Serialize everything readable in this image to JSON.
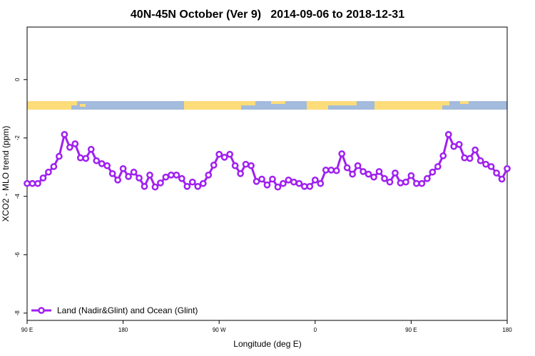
{
  "chart_data": {
    "type": "line",
    "title": "40N-45N October (Ver 9)   2014-09-06 to 2018-12-31",
    "xlabel": "Longitude (deg E)",
    "ylabel": "XCO2 - MLO trend (ppm)",
    "xlim": [
      90,
      540
    ],
    "ylim": [
      -8.25,
      1.8
    ],
    "xticks": [
      {
        "value": 90,
        "label": "90 E"
      },
      {
        "value": 180,
        "label": "180"
      },
      {
        "value": 270,
        "label": "90 W"
      },
      {
        "value": 360,
        "label": "0"
      },
      {
        "value": 450,
        "label": "90 E"
      },
      {
        "value": 540,
        "label": "180"
      }
    ],
    "yticks": [
      0,
      -2,
      -4,
      -6,
      -8
    ],
    "legend": "bottom-left",
    "x": [
      90,
      95,
      100,
      105,
      110,
      115,
      120,
      125,
      130,
      135,
      140,
      145,
      150,
      155,
      160,
      165,
      170,
      175,
      180,
      185,
      190,
      195,
      200,
      205,
      210,
      215,
      220,
      225,
      230,
      235,
      240,
      245,
      250,
      255,
      260,
      265,
      270,
      275,
      280,
      285,
      290,
      295,
      300,
      305,
      310,
      315,
      320,
      325,
      330,
      335,
      340,
      345,
      350,
      355,
      360,
      365,
      370,
      375,
      380,
      385,
      390,
      395,
      400,
      405,
      410,
      415,
      420,
      425,
      430,
      435,
      440,
      445,
      450,
      455,
      460,
      465,
      470,
      475,
      480,
      485,
      490,
      495,
      500,
      505,
      510,
      515,
      520,
      525,
      530,
      535,
      540
    ],
    "series": [
      {
        "name": "Land (Nadir&Glint) and Ocean (Glint)",
        "color": "#a020f0",
        "values": [
          -3.56,
          -3.56,
          -3.56,
          -3.37,
          -3.17,
          -2.98,
          -2.63,
          -1.88,
          -2.32,
          -2.2,
          -2.68,
          -2.7,
          -2.39,
          -2.78,
          -2.88,
          -2.95,
          -3.22,
          -3.44,
          -3.05,
          -3.32,
          -3.17,
          -3.37,
          -3.66,
          -3.27,
          -3.68,
          -3.54,
          -3.34,
          -3.27,
          -3.27,
          -3.39,
          -3.66,
          -3.51,
          -3.66,
          -3.56,
          -3.27,
          -2.93,
          -2.56,
          -2.66,
          -2.56,
          -2.95,
          -3.22,
          -2.9,
          -2.95,
          -3.49,
          -3.41,
          -3.61,
          -3.41,
          -3.68,
          -3.56,
          -3.44,
          -3.51,
          -3.56,
          -3.66,
          -3.66,
          -3.44,
          -3.56,
          -3.1,
          -3.1,
          -3.12,
          -2.54,
          -3.02,
          -3.24,
          -2.95,
          -3.15,
          -3.24,
          -3.34,
          -3.15,
          -3.39,
          -3.51,
          -3.2,
          -3.54,
          -3.51,
          -3.29,
          -3.56,
          -3.56,
          -3.39,
          -3.17,
          -2.98,
          -2.61,
          -1.88,
          -2.29,
          -2.22,
          -2.68,
          -2.7,
          -2.41,
          -2.78,
          -2.9,
          -2.98,
          -3.2,
          -3.41,
          -3.05
        ]
      }
    ]
  }
}
